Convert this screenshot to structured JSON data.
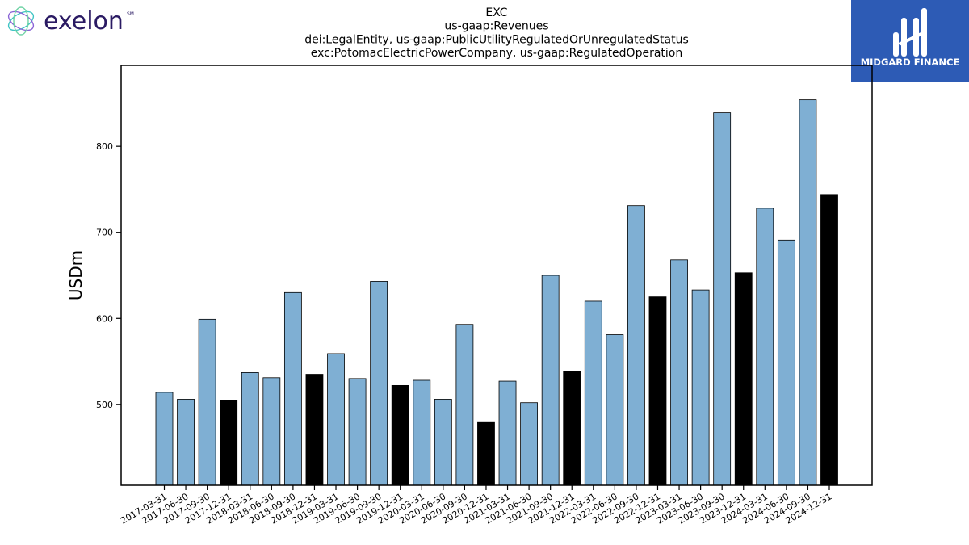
{
  "brand_left": {
    "name": "exelon",
    "mark": "SM",
    "color": "#2a1a63"
  },
  "brand_right": {
    "name": "MIDGARD FINANCE",
    "color": "#2d5bb5"
  },
  "chart_data": {
    "type": "bar",
    "title_lines": [
      "EXC",
      "us-gaap:Revenues",
      "dei:LegalEntity, us-gaap:PublicUtilityRegulatedOrUnregulatedStatus",
      "exc:PotomacElectricPowerCompany, us-gaap:RegulatedOperation"
    ],
    "xlabel": "",
    "ylabel": "USDm",
    "ylim": [
      406,
      894
    ],
    "yticks": [
      500,
      600,
      700,
      800
    ],
    "grid": false,
    "colors": {
      "quarter": "#7fafd3",
      "year_end": "#000000",
      "edge": "#000000"
    },
    "categories": [
      "2017-03-31",
      "2017-06-30",
      "2017-09-30",
      "2017-12-31",
      "2018-03-31",
      "2018-06-30",
      "2018-09-30",
      "2018-12-31",
      "2019-03-31",
      "2019-06-30",
      "2019-09-30",
      "2019-12-31",
      "2020-03-31",
      "2020-06-30",
      "2020-09-30",
      "2020-12-31",
      "2021-03-31",
      "2021-06-30",
      "2021-09-30",
      "2021-12-31",
      "2022-03-31",
      "2022-06-30",
      "2022-09-30",
      "2022-12-31",
      "2023-03-31",
      "2023-06-30",
      "2023-09-30",
      "2023-12-31",
      "2024-03-31",
      "2024-06-30",
      "2024-09-30",
      "2024-12-31"
    ],
    "values": [
      514,
      506,
      599,
      505,
      537,
      531,
      630,
      535,
      559,
      530,
      643,
      522,
      528,
      506,
      593,
      479,
      527,
      502,
      650,
      538,
      620,
      581,
      731,
      625,
      668,
      633,
      839,
      653,
      728,
      691,
      854,
      744
    ]
  }
}
